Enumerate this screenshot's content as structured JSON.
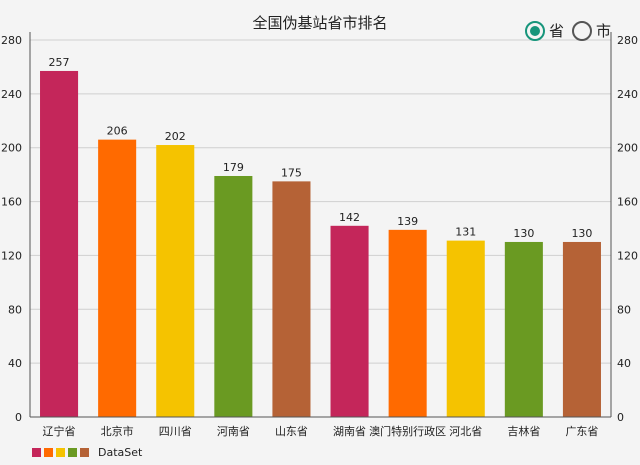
{
  "chart_data": {
    "type": "bar",
    "title": "全国伪基站省市排名",
    "categories": [
      "辽宁省",
      "北京市",
      "四川省",
      "河南省",
      "山东省",
      "湖南省",
      "澳门特别行政区",
      "河北省",
      "吉林省",
      "广东省"
    ],
    "series": [
      {
        "name": "DataSet",
        "values": [
          257,
          206,
          202,
          179,
          175,
          142,
          139,
          131,
          130,
          130
        ]
      }
    ],
    "ylim": [
      0,
      280
    ],
    "yticks": [
      0,
      40,
      80,
      120,
      160,
      200,
      240,
      280
    ],
    "grid": true,
    "legend_position": "bottom-left",
    "colors": [
      "#c4265a",
      "#ff6a00",
      "#f5c300",
      "#6a9a22",
      "#b56236"
    ]
  },
  "toggle": {
    "province_label": "省",
    "city_label": "市",
    "selected": "province",
    "active_color": "#17957b"
  }
}
